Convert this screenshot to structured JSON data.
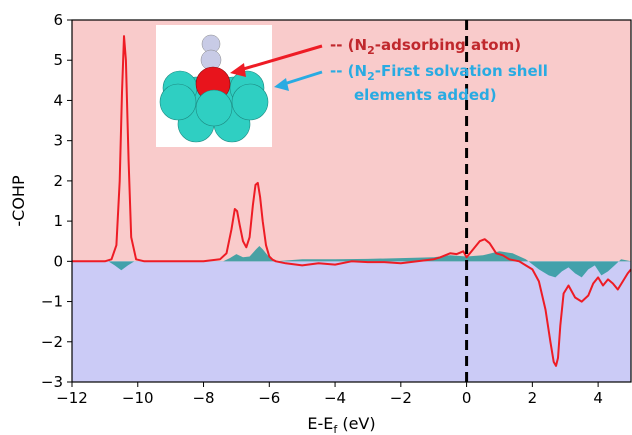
{
  "chart_data": {
    "type": "line",
    "xlabel": "E-E",
    "xlabel_sub": "f",
    "xlabel_unit": " (eV)",
    "ylabel": "-COHP",
    "xlim": [
      -12,
      5
    ],
    "ylim": [
      -3,
      6
    ],
    "xticks": [
      -12,
      -10,
      -8,
      -6,
      -4,
      -2,
      0,
      2,
      4
    ],
    "xtick_labels": [
      "−12",
      "−10",
      "−8",
      "−6",
      "−4",
      "−2",
      "0",
      "2",
      "4"
    ],
    "yticks": [
      -3,
      -2,
      -1,
      0,
      1,
      2,
      3,
      4,
      5,
      6
    ],
    "ytick_labels": [
      "−3",
      "−2",
      "−1",
      "0",
      "1",
      "2",
      "3",
      "4",
      "5",
      "6"
    ],
    "vline_x": 0,
    "background_regions": [
      {
        "from": 0,
        "to": 6,
        "color": "#f9cbcb"
      },
      {
        "from": -3,
        "to": 0,
        "color": "#cbcbf6"
      }
    ],
    "legend": [
      {
        "prefix": "-- ",
        "text": "(N",
        "sub": "2",
        "rest": "-adsorbing atom)",
        "color": "#c0282d"
      },
      {
        "prefix": "-- ",
        "text": "(N",
        "sub": "2",
        "rest": "-First solvation shell",
        "line2": "elements added)",
        "color": "#29abe2"
      }
    ],
    "series": [
      {
        "color": "#ee1c25",
        "style": "line",
        "x": [
          -12,
          -11.5,
          -11,
          -10.8,
          -10.65,
          -10.55,
          -10.48,
          -10.42,
          -10.36,
          -10.28,
          -10.2,
          -10.05,
          -9.8,
          -9.5,
          -9,
          -8.5,
          -8,
          -7.5,
          -7.3,
          -7.15,
          -7.05,
          -6.98,
          -6.9,
          -6.8,
          -6.7,
          -6.6,
          -6.5,
          -6.42,
          -6.35,
          -6.28,
          -6.2,
          -6.1,
          -6.0,
          -5.9,
          -5.8,
          -5.5,
          -5,
          -4.5,
          -4,
          -3.5,
          -3,
          -2.5,
          -2,
          -1.5,
          -1,
          -0.8,
          -0.5,
          -0.3,
          -0.1,
          0,
          0.2,
          0.4,
          0.55,
          0.7,
          0.9,
          1.1,
          1.3,
          1.6,
          1.8,
          2.0,
          2.2,
          2.4,
          2.55,
          2.65,
          2.72,
          2.78,
          2.85,
          2.95,
          3.1,
          3.3,
          3.5,
          3.7,
          3.85,
          4.0,
          4.15,
          4.3,
          4.45,
          4.6,
          4.75,
          4.9,
          5.0
        ],
        "y": [
          0,
          0,
          0,
          0.05,
          0.4,
          2.0,
          4.2,
          5.6,
          5.0,
          2.5,
          0.6,
          0.05,
          0,
          0,
          0,
          0,
          0,
          0.05,
          0.2,
          0.8,
          1.3,
          1.25,
          0.9,
          0.5,
          0.35,
          0.6,
          1.4,
          1.9,
          1.95,
          1.6,
          1.0,
          0.4,
          0.12,
          0.04,
          0,
          -0.05,
          -0.1,
          -0.05,
          -0.08,
          0,
          -0.02,
          -0.02,
          -0.05,
          0,
          0.05,
          0.1,
          0.2,
          0.18,
          0.25,
          0.1,
          0.3,
          0.5,
          0.55,
          0.45,
          0.2,
          0.15,
          0.05,
          0,
          -0.1,
          -0.2,
          -0.5,
          -1.2,
          -2.0,
          -2.5,
          -2.6,
          -2.4,
          -1.6,
          -0.8,
          -0.6,
          -0.9,
          -1.0,
          -0.85,
          -0.55,
          -0.4,
          -0.6,
          -0.45,
          -0.55,
          -0.7,
          -0.5,
          -0.3,
          -0.2
        ]
      },
      {
        "color": "#2a9a9e",
        "style": "filled",
        "x": [
          -12,
          -10.9,
          -10.7,
          -10.5,
          -10.3,
          -10.1,
          -9.5,
          -7.4,
          -7.2,
          -7.0,
          -6.8,
          -6.6,
          -6.4,
          -6.3,
          -6.2,
          -6.0,
          -5.8,
          -5.0,
          -4.0,
          -3.0,
          -2.0,
          -1.0,
          -0.5,
          0,
          0.5,
          1.0,
          1.4,
          1.8,
          2.2,
          2.5,
          2.7,
          2.9,
          3.1,
          3.3,
          3.5,
          3.7,
          3.9,
          4.1,
          4.3,
          4.5,
          4.7,
          5.0
        ],
        "y": [
          0,
          0,
          -0.1,
          -0.22,
          -0.1,
          0,
          0,
          0,
          0.08,
          0.18,
          0.1,
          0.12,
          0.3,
          0.38,
          0.3,
          0.1,
          0,
          0.05,
          0.05,
          0.06,
          0.08,
          0.1,
          0.15,
          0.12,
          0.15,
          0.25,
          0.2,
          0.05,
          -0.2,
          -0.35,
          -0.4,
          -0.25,
          -0.15,
          -0.3,
          -0.4,
          -0.2,
          -0.1,
          -0.35,
          -0.25,
          -0.1,
          0.05,
          0
        ]
      }
    ]
  }
}
